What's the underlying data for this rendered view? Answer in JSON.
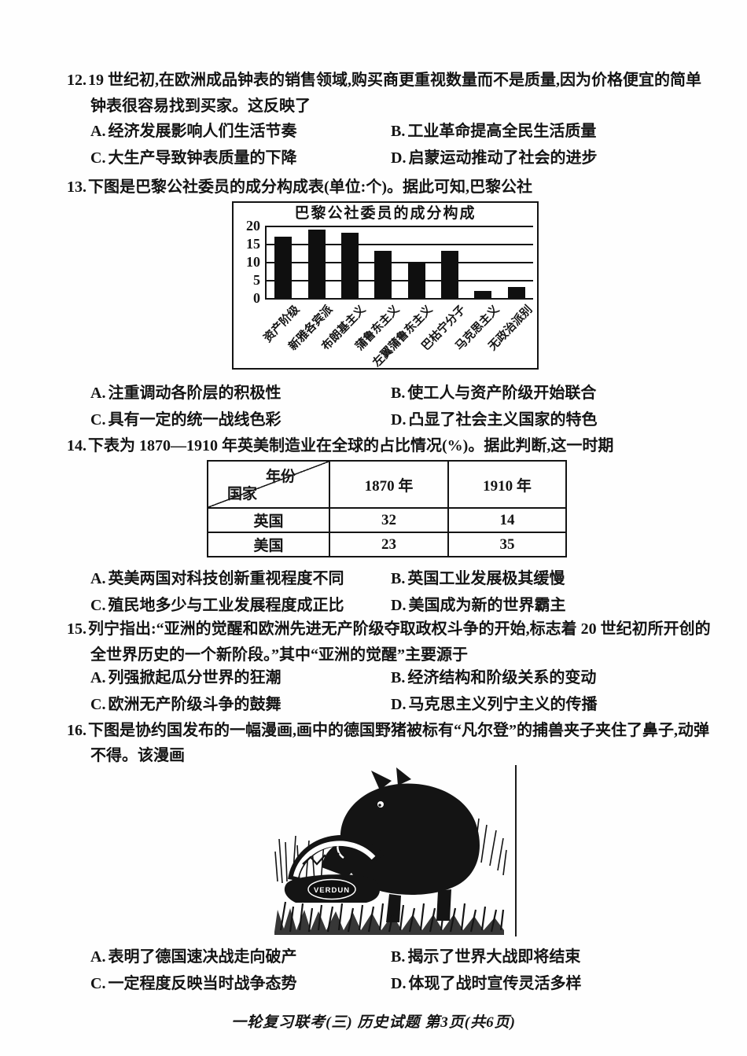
{
  "page": {
    "footer": "一轮复习联考(三) 历史试题 第3页(共6页)"
  },
  "questions": [
    {
      "number": "12.",
      "stem": "19 世纪初,在欧洲成品钟表的销售领域,购买商更重视数量而不是质量,因为价格便宜的简单钟表很容易找到买家。这反映了",
      "options": [
        {
          "label": "A.",
          "text": "经济发展影响人们生活节奏"
        },
        {
          "label": "B.",
          "text": "工业革命提高全民生活质量"
        },
        {
          "label": "C.",
          "text": "大生产导致钟表质量的下降"
        },
        {
          "label": "D.",
          "text": "启蒙运动推动了社会的进步"
        }
      ]
    },
    {
      "number": "13.",
      "stem": "下图是巴黎公社委员的成分构成表(单位:个)。据此可知,巴黎公社",
      "options": [
        {
          "label": "A.",
          "text": "注重调动各阶层的积极性"
        },
        {
          "label": "B.",
          "text": "使工人与资产阶级开始联合"
        },
        {
          "label": "C.",
          "text": "具有一定的统一战线色彩"
        },
        {
          "label": "D.",
          "text": "凸显了社会主义国家的特色"
        }
      ]
    },
    {
      "number": "14.",
      "stem": "下表为 1870—1910 年英美制造业在全球的占比情况(%)。据此判断,这一时期",
      "options": [
        {
          "label": "A.",
          "text": "英美两国对科技创新重视程度不同"
        },
        {
          "label": "B.",
          "text": "英国工业发展极其缓慢"
        },
        {
          "label": "C.",
          "text": "殖民地多少与工业发展程度成正比"
        },
        {
          "label": "D.",
          "text": "美国成为新的世界霸主"
        }
      ]
    },
    {
      "number": "15.",
      "stem": "列宁指出:“亚洲的觉醒和欧洲先进无产阶级夺取政权斗争的开始,标志着 20 世纪初所开创的全世界历史的一个新阶段。”其中“亚洲的觉醒”主要源于",
      "options": [
        {
          "label": "A.",
          "text": "列强掀起瓜分世界的狂潮"
        },
        {
          "label": "B.",
          "text": "经济结构和阶级关系的变动"
        },
        {
          "label": "C.",
          "text": "欧洲无产阶级斗争的鼓舞"
        },
        {
          "label": "D.",
          "text": "马克思主义列宁主义的传播"
        }
      ]
    },
    {
      "number": "16.",
      "stem": "下图是协约国发布的一幅漫画,画中的德国野猪被标有“凡尔登”的捕兽夹子夹住了鼻子,动弹不得。该漫画",
      "options": [
        {
          "label": "A.",
          "text": "表明了德国速决战走向破产"
        },
        {
          "label": "B.",
          "text": "揭示了世界大战即将结束"
        },
        {
          "label": "C.",
          "text": "一定程度反映当时战争态势"
        },
        {
          "label": "D.",
          "text": "体现了战时宣传灵活多样"
        }
      ]
    }
  ],
  "chart_data": {
    "type": "bar",
    "title": "巴黎公社委员的成分构成",
    "categories": [
      "资产阶级",
      "新雅各宾派",
      "布朗基主义",
      "蒲鲁东主义",
      "左翼蒲鲁东主义",
      "巴枯宁分子",
      "马克思主义",
      "无政治派别"
    ],
    "values": [
      17,
      19,
      18,
      13,
      10,
      13,
      2,
      3
    ],
    "unit": "个",
    "xlabel": "",
    "ylabel": "",
    "ylim": [
      0,
      20
    ],
    "yticks": [
      0,
      5,
      10,
      15,
      20
    ],
    "grid": true,
    "legend": "none",
    "bar_color": "#0f0f0f"
  },
  "table": {
    "corner_top": "年份",
    "corner_bottom": "国家",
    "columns": [
      "1870 年",
      "1910 年"
    ],
    "rows": [
      {
        "country": "英国",
        "values": [
          "32",
          "14"
        ]
      },
      {
        "country": "美国",
        "values": [
          "23",
          "35"
        ]
      }
    ]
  },
  "cartoon": {
    "trap_label": "VERDUN"
  }
}
